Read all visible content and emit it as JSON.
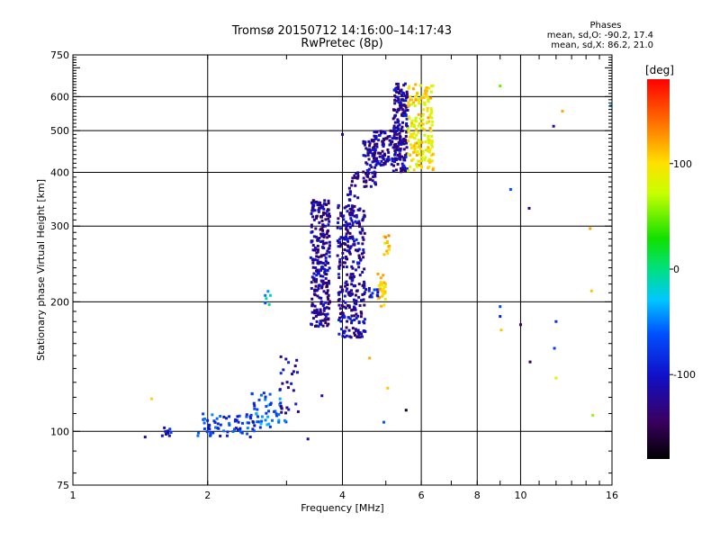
{
  "title": "Tromsø 20150712 14:16:00–14:17:43",
  "subtitle": "RwPretec (8p)",
  "phase_legend": {
    "heading": "Phases",
    "line1": "mean, sd,O: -90.2, 17.4",
    "line2": "mean, sd,X: 86.2, 21.0"
  },
  "colorbar": {
    "label": "[deg]",
    "ticks": [
      "100",
      "0",
      "-100"
    ],
    "tick_values": [
      100,
      0,
      -100
    ],
    "range": [
      -180,
      180
    ]
  },
  "chart_data": {
    "type": "scatter",
    "title": "Tromsø 20150712 14:16:00–14:17:43",
    "subtitle": "RwPretec (8p)",
    "xlabel": "Frequency [MHz]",
    "ylabel": "Stationary phase Virtual Height [km]",
    "xscale": "log",
    "yscale": "log",
    "xlim": [
      1,
      16
    ],
    "ylim": [
      75,
      750
    ],
    "x_ticks": [
      1,
      2,
      4,
      6,
      8,
      10,
      16
    ],
    "y_ticks": [
      75,
      100,
      200,
      300,
      400,
      500,
      600,
      750
    ],
    "grid": true,
    "color_encoding": "phase [deg]",
    "clusters": [
      {
        "x_range": [
          1.58,
          1.66
        ],
        "y_range": [
          97,
          102
        ],
        "phase": -100,
        "count": 10
      },
      {
        "x_range": [
          1.9,
          2.6
        ],
        "y_range": [
          97,
          110
        ],
        "phase": -75,
        "count": 70
      },
      {
        "x_range": [
          2.5,
          3.0
        ],
        "y_range": [
          102,
          125
        ],
        "phase": -60,
        "count": 45
      },
      {
        "x_range": [
          2.9,
          3.2
        ],
        "y_range": [
          110,
          150
        ],
        "phase": -110,
        "count": 25
      },
      {
        "x_range": [
          2.65,
          2.8
        ],
        "y_range": [
          195,
          215
        ],
        "phase": -30,
        "count": 6
      },
      {
        "x_range": [
          3.4,
          3.75
        ],
        "y_range": [
          175,
          345
        ],
        "phase": -120,
        "count": 280
      },
      {
        "x_range": [
          3.9,
          4.5
        ],
        "y_range": [
          165,
          335
        ],
        "phase": -115,
        "count": 300
      },
      {
        "x_range": [
          4.1,
          4.35
        ],
        "y_range": [
          340,
          400
        ],
        "phase": -125,
        "count": 20
      },
      {
        "x_range": [
          4.45,
          4.75
        ],
        "y_range": [
          370,
          480
        ],
        "phase": -115,
        "count": 70
      },
      {
        "x_range": [
          4.7,
          5.2
        ],
        "y_range": [
          415,
          500
        ],
        "phase": -120,
        "count": 90
      },
      {
        "x_range": [
          5.2,
          5.6
        ],
        "y_range": [
          400,
          645
        ],
        "phase": -115,
        "count": 180
      },
      {
        "x_range": [
          5.6,
          6.4
        ],
        "y_range": [
          400,
          640
        ],
        "phase": 95,
        "count": 180
      },
      {
        "x_range": [
          4.8,
          5.0
        ],
        "y_range": [
          195,
          235
        ],
        "phase": 110,
        "count": 30
      },
      {
        "x_range": [
          4.95,
          5.1
        ],
        "y_range": [
          245,
          285
        ],
        "phase": 105,
        "count": 12
      },
      {
        "x_range": [
          4.5,
          4.8
        ],
        "y_range": [
          205,
          215
        ],
        "phase": -95,
        "count": 12
      }
    ],
    "outliers": [
      {
        "x": 1.45,
        "y": 97,
        "phase": -120
      },
      {
        "x": 1.5,
        "y": 119,
        "phase": 105
      },
      {
        "x": 3.35,
        "y": 96,
        "phase": -120
      },
      {
        "x": 3.6,
        "y": 121,
        "phase": -110
      },
      {
        "x": 4.0,
        "y": 490,
        "phase": -120
      },
      {
        "x": 4.6,
        "y": 148,
        "phase": 120
      },
      {
        "x": 4.95,
        "y": 105,
        "phase": -60
      },
      {
        "x": 5.05,
        "y": 126,
        "phase": 110
      },
      {
        "x": 5.55,
        "y": 112,
        "phase": -170
      },
      {
        "x": 9.0,
        "y": 635,
        "phase": 50
      },
      {
        "x": 9.5,
        "y": 365,
        "phase": -60
      },
      {
        "x": 9.0,
        "y": 195,
        "phase": -60
      },
      {
        "x": 9.0,
        "y": 185,
        "phase": -90
      },
      {
        "x": 9.05,
        "y": 172,
        "phase": 110
      },
      {
        "x": 10.0,
        "y": 177,
        "phase": -140
      },
      {
        "x": 10.45,
        "y": 330,
        "phase": -130
      },
      {
        "x": 10.5,
        "y": 145,
        "phase": -150
      },
      {
        "x": 11.85,
        "y": 512,
        "phase": -120
      },
      {
        "x": 12.4,
        "y": 555,
        "phase": 120
      },
      {
        "x": 12.0,
        "y": 180,
        "phase": -80
      },
      {
        "x": 11.9,
        "y": 156,
        "phase": -70
      },
      {
        "x": 12.0,
        "y": 133,
        "phase": 70
      },
      {
        "x": 14.3,
        "y": 296,
        "phase": 120
      },
      {
        "x": 14.4,
        "y": 212,
        "phase": 110
      },
      {
        "x": 14.5,
        "y": 109,
        "phase": 60
      },
      {
        "x": 15.9,
        "y": 572,
        "phase": -40
      }
    ]
  }
}
